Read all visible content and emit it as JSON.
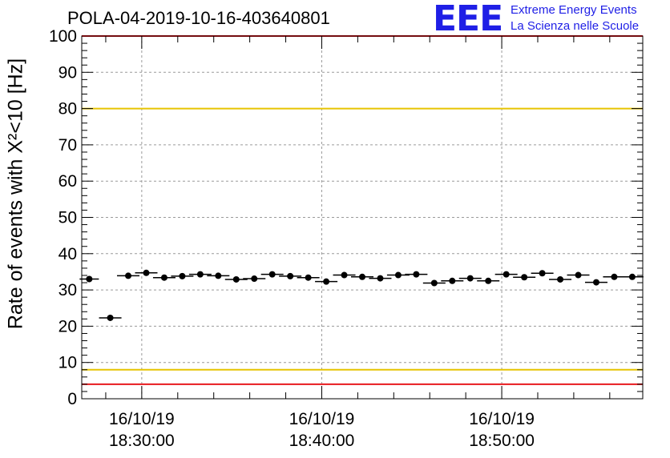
{
  "chart_data": {
    "type": "scatter",
    "title": "POLA-04-2019-10-16-403640801",
    "ylabel": "Rate of events with X²<10 [Hz]",
    "xlabel": "",
    "ylim": [
      0,
      100
    ],
    "y_ticks": [
      "0",
      "10",
      "20",
      "30",
      "40",
      "50",
      "60",
      "70",
      "80",
      "90",
      "100"
    ],
    "x_ticks": [
      {
        "date": "16/10/19",
        "time": "18:30:00"
      },
      {
        "date": "16/10/19",
        "time": "18:40:00"
      },
      {
        "date": "16/10/19",
        "time": "18:50:00"
      }
    ],
    "x_range": [
      "18:26:40",
      "18:57:50"
    ],
    "grid": true,
    "reference_lines": [
      {
        "y": 100,
        "color": "#e8191e"
      },
      {
        "y": 80,
        "color": "#e6c400"
      },
      {
        "y": 8,
        "color": "#e6c400"
      },
      {
        "y": 4,
        "color": "#e8191e"
      }
    ],
    "series": [
      {
        "x": [
          "18:27:05",
          "18:28:15",
          "18:29:15",
          "18:30:15",
          "18:31:15",
          "18:32:15",
          "18:33:15",
          "18:34:15",
          "18:35:15",
          "18:36:15",
          "18:37:15",
          "18:38:15",
          "18:39:15",
          "18:40:15",
          "18:41:15",
          "18:42:15",
          "18:43:15",
          "18:44:15",
          "18:45:15",
          "18:46:15",
          "18:47:15",
          "18:48:15",
          "18:49:15",
          "18:50:15",
          "18:51:15",
          "18:52:15",
          "18:53:15",
          "18:54:15",
          "18:55:15",
          "18:56:15",
          "18:57:15"
        ],
        "y": [
          33.0,
          22.3,
          33.9,
          34.7,
          33.4,
          33.8,
          34.3,
          33.9,
          32.9,
          33.1,
          34.3,
          33.8,
          33.4,
          32.3,
          34.1,
          33.6,
          33.2,
          34.1,
          34.3,
          31.9,
          32.5,
          33.2,
          32.5,
          34.3,
          33.5,
          34.6,
          32.9,
          34.1,
          32.1,
          33.6,
          33.6
        ],
        "color": "#000000"
      }
    ]
  },
  "logo": {
    "mark": "EEE",
    "line1": "Extreme Energy Events",
    "line2": "La Scienza nelle Scuole"
  }
}
